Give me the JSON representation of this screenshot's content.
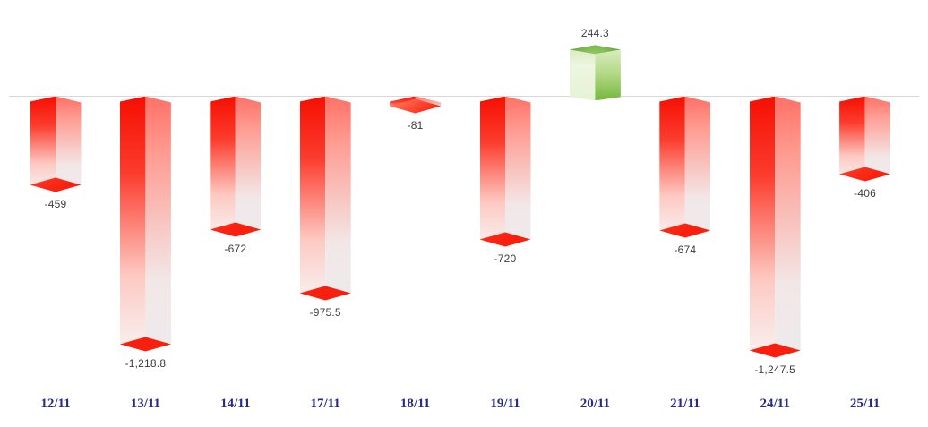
{
  "chart_data": {
    "type": "bar",
    "style": "3d-column-gradient",
    "title": "",
    "xlabel": "",
    "ylabel": "",
    "categories": [
      "12/11",
      "13/11",
      "14/11",
      "17/11",
      "18/11",
      "19/11",
      "20/11",
      "21/11",
      "24/11",
      "25/11"
    ],
    "series": [
      {
        "name": "daily-values",
        "values": [
          -459,
          -1218.8,
          -672,
          -975.5,
          -81,
          -720,
          244.3,
          -674,
          -1247.5,
          -406
        ]
      }
    ],
    "value_labels": [
      "-459",
      "-1,218.8",
      "-672",
      "-975.5",
      "-81",
      "-720",
      "244.3",
      "-674",
      "-1,247.5",
      "-406"
    ],
    "baseline": 0,
    "y_implied_range": [
      -1247.5,
      244.3
    ],
    "grid": "zero-axis-line-only",
    "legend": "none",
    "colors": {
      "negative_bar": "#f60f02",
      "positive_bar": "#7cbb47",
      "axis_line": "#d8d8d8",
      "category_label": "#252a8e",
      "value_label": "#3d3d3d",
      "background": "#ffffff"
    }
  }
}
